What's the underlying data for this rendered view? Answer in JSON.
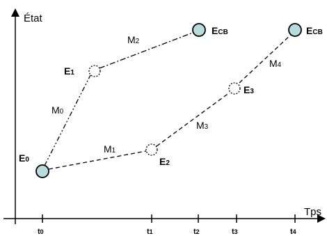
{
  "axes": {
    "y_label": "État",
    "x_label": "Tps",
    "ticks": [
      {
        "id": "t0",
        "label": "t0"
      },
      {
        "id": "t1",
        "label": "t1"
      },
      {
        "id": "t2",
        "label": "t2"
      },
      {
        "id": "t3",
        "label": "t3"
      },
      {
        "id": "t4",
        "label": "t4"
      }
    ]
  },
  "nodes": [
    {
      "id": "E0",
      "main": "E",
      "sub": "0",
      "style": "filled"
    },
    {
      "id": "E1",
      "main": "E",
      "sub": "1",
      "style": "dotted"
    },
    {
      "id": "E2",
      "main": "E",
      "sub": "2",
      "style": "dotted"
    },
    {
      "id": "E3",
      "main": "E",
      "sub": "3",
      "style": "dotted"
    },
    {
      "id": "ECB_top",
      "main": "E",
      "sub": "CB",
      "style": "filled"
    },
    {
      "id": "ECB_right",
      "main": "E",
      "sub": "CB",
      "style": "filled"
    }
  ],
  "edges": [
    {
      "id": "M0",
      "main": "M",
      "sub": "0",
      "from": "E0",
      "to": "E1",
      "line": "dash-dot-dot"
    },
    {
      "id": "M2",
      "main": "M",
      "sub": "2",
      "from": "E1",
      "to": "ECB_top",
      "line": "dash-dot"
    },
    {
      "id": "M1",
      "main": "M",
      "sub": "1",
      "from": "E0",
      "to": "E2",
      "line": "dashed"
    },
    {
      "id": "M3",
      "main": "M",
      "sub": "3",
      "from": "E2",
      "to": "E3",
      "line": "dashed"
    },
    {
      "id": "M4",
      "main": "M",
      "sub": "4",
      "from": "E3",
      "to": "ECB_right",
      "line": "dashed"
    }
  ],
  "colors": {
    "node_fill": "#b7dcdc",
    "stroke": "#000000"
  }
}
